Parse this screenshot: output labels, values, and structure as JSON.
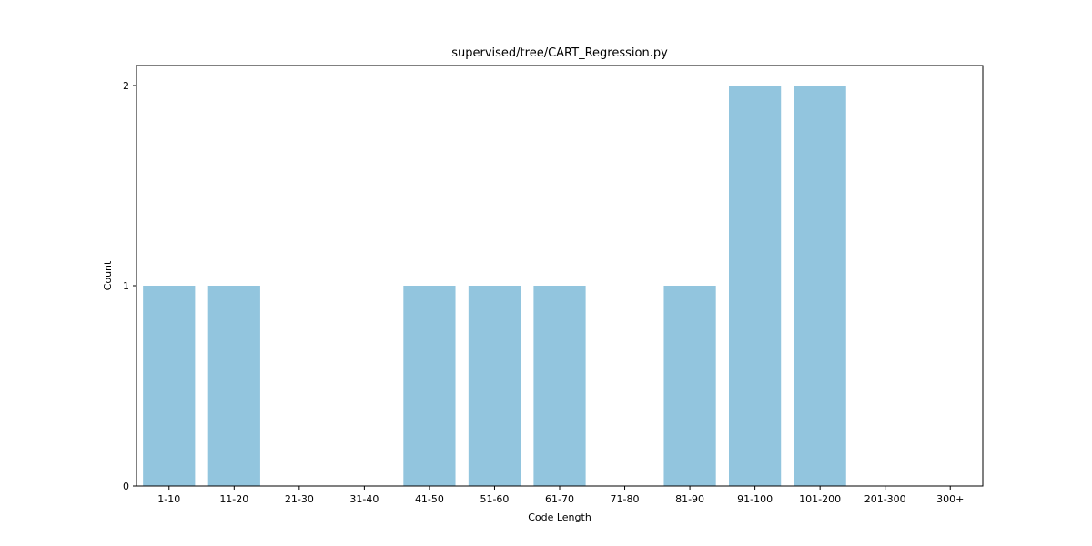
{
  "chart_data": {
    "type": "bar",
    "title": "supervised/tree/CART_Regression.py",
    "xlabel": "Code Length",
    "ylabel": "Count",
    "categories": [
      "1-10",
      "11-20",
      "21-30",
      "31-40",
      "41-50",
      "51-60",
      "61-70",
      "71-80",
      "81-90",
      "91-100",
      "101-200",
      "201-300",
      "300+"
    ],
    "values": [
      1,
      1,
      0,
      0,
      1,
      1,
      1,
      0,
      1,
      2,
      2,
      0,
      0
    ],
    "ylim": [
      0,
      2.1
    ],
    "yticks": [
      0,
      1,
      2
    ],
    "grid": false,
    "bar_color": "#92c5de"
  }
}
